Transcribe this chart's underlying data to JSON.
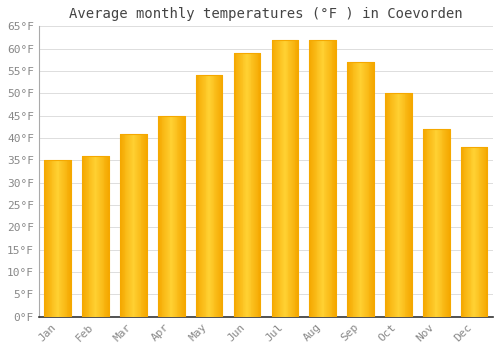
{
  "title": "Average monthly temperatures (°F ) in Coevorden",
  "months": [
    "Jan",
    "Feb",
    "Mar",
    "Apr",
    "May",
    "Jun",
    "Jul",
    "Aug",
    "Sep",
    "Oct",
    "Nov",
    "Dec"
  ],
  "values": [
    35,
    36,
    41,
    45,
    54,
    59,
    62,
    62,
    57,
    50,
    42,
    38
  ],
  "bar_color_center": "#FFD133",
  "bar_color_edge": "#F5A800",
  "ylim": [
    0,
    65
  ],
  "yticks": [
    0,
    5,
    10,
    15,
    20,
    25,
    30,
    35,
    40,
    45,
    50,
    55,
    60,
    65
  ],
  "ytick_labels": [
    "0°F",
    "5°F",
    "10°F",
    "15°F",
    "20°F",
    "25°F",
    "30°F",
    "35°F",
    "40°F",
    "45°F",
    "50°F",
    "55°F",
    "60°F",
    "65°F"
  ],
  "grid_color": "#dddddd",
  "background_color": "#ffffff",
  "title_fontsize": 10,
  "tick_fontsize": 8,
  "font_family": "monospace",
  "tick_color": "#888888"
}
